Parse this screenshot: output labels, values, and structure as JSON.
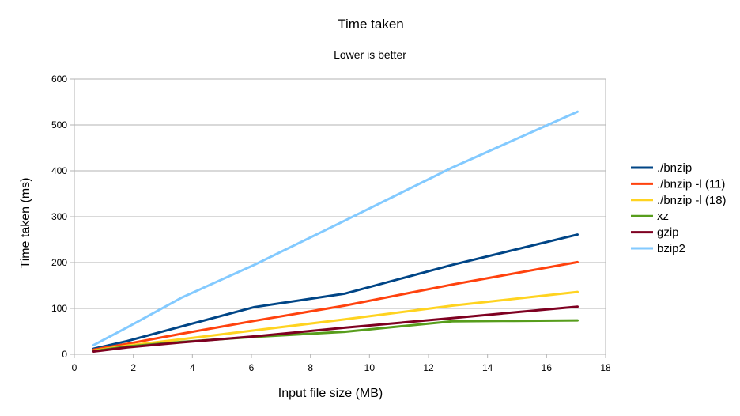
{
  "chart_data": {
    "type": "line",
    "title": "Time taken",
    "subtitle": "Lower is better",
    "xlabel": "Input file size (MB)",
    "ylabel": "Time taken (ms)",
    "xlim": [
      0,
      18
    ],
    "ylim": [
      0,
      600
    ],
    "xticks": [
      "0",
      "2",
      "4",
      "6",
      "8",
      "10",
      "12",
      "14",
      "16",
      "18"
    ],
    "yticks": [
      "0",
      "100",
      "200",
      "300",
      "400",
      "500",
      "600"
    ],
    "grid": true,
    "legend_position": "right",
    "series": [
      {
        "name": "./bnzip",
        "color": "#004586",
        "points": [
          [
            0.65,
            12
          ],
          [
            1.8,
            29
          ],
          [
            3.65,
            61
          ],
          [
            6.1,
            103
          ],
          [
            9.15,
            132
          ],
          [
            12.8,
            195
          ],
          [
            17.05,
            261
          ]
        ]
      },
      {
        "name": "./bnzip -l (11)",
        "color": "#ff420e",
        "points": [
          [
            0.65,
            10
          ],
          [
            1.8,
            23
          ],
          [
            3.65,
            45
          ],
          [
            6.1,
            73
          ],
          [
            9.15,
            106
          ],
          [
            12.8,
            152
          ],
          [
            17.05,
            201
          ]
        ]
      },
      {
        "name": "./bnzip -l (18)",
        "color": "#ffd320",
        "points": [
          [
            0.65,
            8
          ],
          [
            1.8,
            19
          ],
          [
            3.65,
            33
          ],
          [
            6.1,
            52
          ],
          [
            9.15,
            76
          ],
          [
            12.8,
            106
          ],
          [
            17.05,
            136
          ]
        ]
      },
      {
        "name": "xz",
        "color": "#579d1c",
        "points": [
          [
            0.65,
            7
          ],
          [
            1.8,
            17
          ],
          [
            3.65,
            27
          ],
          [
            6.1,
            38
          ],
          [
            9.15,
            49
          ],
          [
            12.8,
            72
          ],
          [
            14.9,
            73
          ],
          [
            17.05,
            74
          ]
        ]
      },
      {
        "name": "gzip",
        "color": "#7e0021",
        "points": [
          [
            0.65,
            6
          ],
          [
            1.8,
            15
          ],
          [
            3.65,
            26
          ],
          [
            6.1,
            39
          ],
          [
            9.15,
            58
          ],
          [
            12.8,
            79
          ],
          [
            17.05,
            104
          ]
        ]
      },
      {
        "name": "bzip2",
        "color": "#83caff",
        "points": [
          [
            0.65,
            20
          ],
          [
            1.8,
            59
          ],
          [
            3.65,
            124
          ],
          [
            6.1,
            195
          ],
          [
            9.15,
            291
          ],
          [
            12.8,
            407
          ],
          [
            17.05,
            529
          ]
        ]
      }
    ]
  }
}
